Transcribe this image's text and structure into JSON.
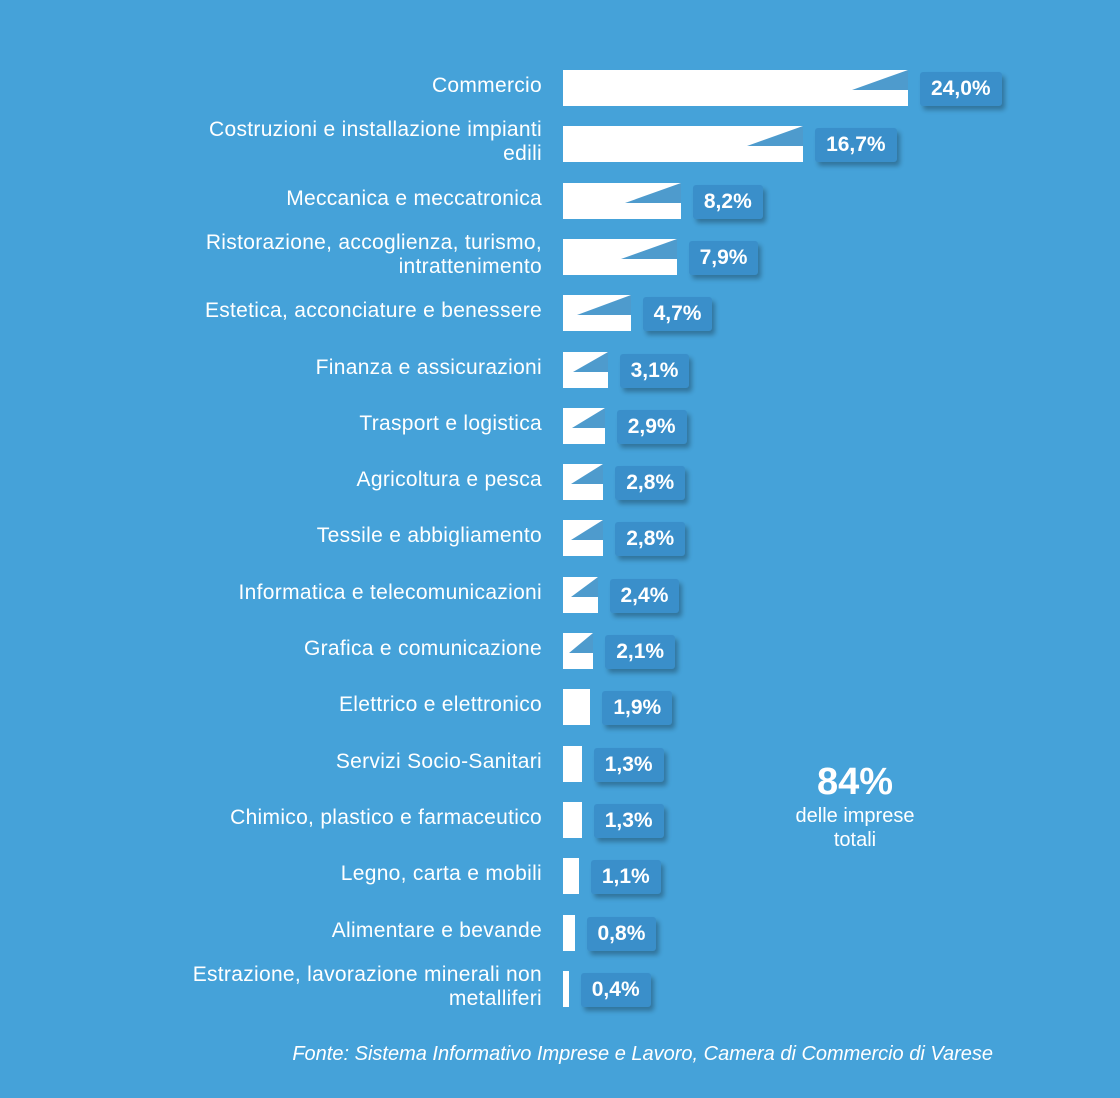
{
  "chart_data": {
    "type": "bar",
    "orientation": "horizontal",
    "categories": [
      "Commercio",
      "Costruzioni e installazione impianti\nedili",
      "Meccanica e meccatronica",
      "Ristorazione, accoglienza, turismo,\nintrattenimento",
      "Estetica, acconciature e benessere",
      "Finanza e assicurazioni",
      "Trasport e logistica",
      "Agricoltura e pesca",
      "Tessile e abbigliamento",
      "Informatica e telecomunicazioni",
      "Grafica e comunicazione",
      "Elettrico e elettronico",
      "Servizi Socio-Sanitari",
      "Chimico, plastico e farmaceutico",
      "Legno, carta e mobili",
      "Alimentare e bevande",
      "Estrazione, lavorazione minerali non\nmetalliferi"
    ],
    "values": [
      24.0,
      16.7,
      8.2,
      7.9,
      4.7,
      3.1,
      2.9,
      2.8,
      2.8,
      2.4,
      2.1,
      1.9,
      1.3,
      1.3,
      1.1,
      0.8,
      0.4
    ],
    "value_labels": [
      "24,0%",
      "16,7%",
      "8,2%",
      "7,9%",
      "4,7%",
      "3,1%",
      "2,9%",
      "2,8%",
      "2,8%",
      "2,4%",
      "2,1%",
      "1,9%",
      "1,3%",
      "1,3%",
      "1,1%",
      "0,8%",
      "0,4%"
    ],
    "xlim": [
      0,
      24.0
    ],
    "grid": false,
    "legend": "none",
    "colors": {
      "background": "#45a2d9",
      "bar": "#ffffff",
      "badge": "#3a8fca",
      "text": "#ffffff"
    }
  },
  "highlight": {
    "value": "84%",
    "caption": "delle imprese\ntotali"
  },
  "source": "Fonte: Sistema Informativo Imprese e Lavoro, Camera di Commercio di Varese"
}
